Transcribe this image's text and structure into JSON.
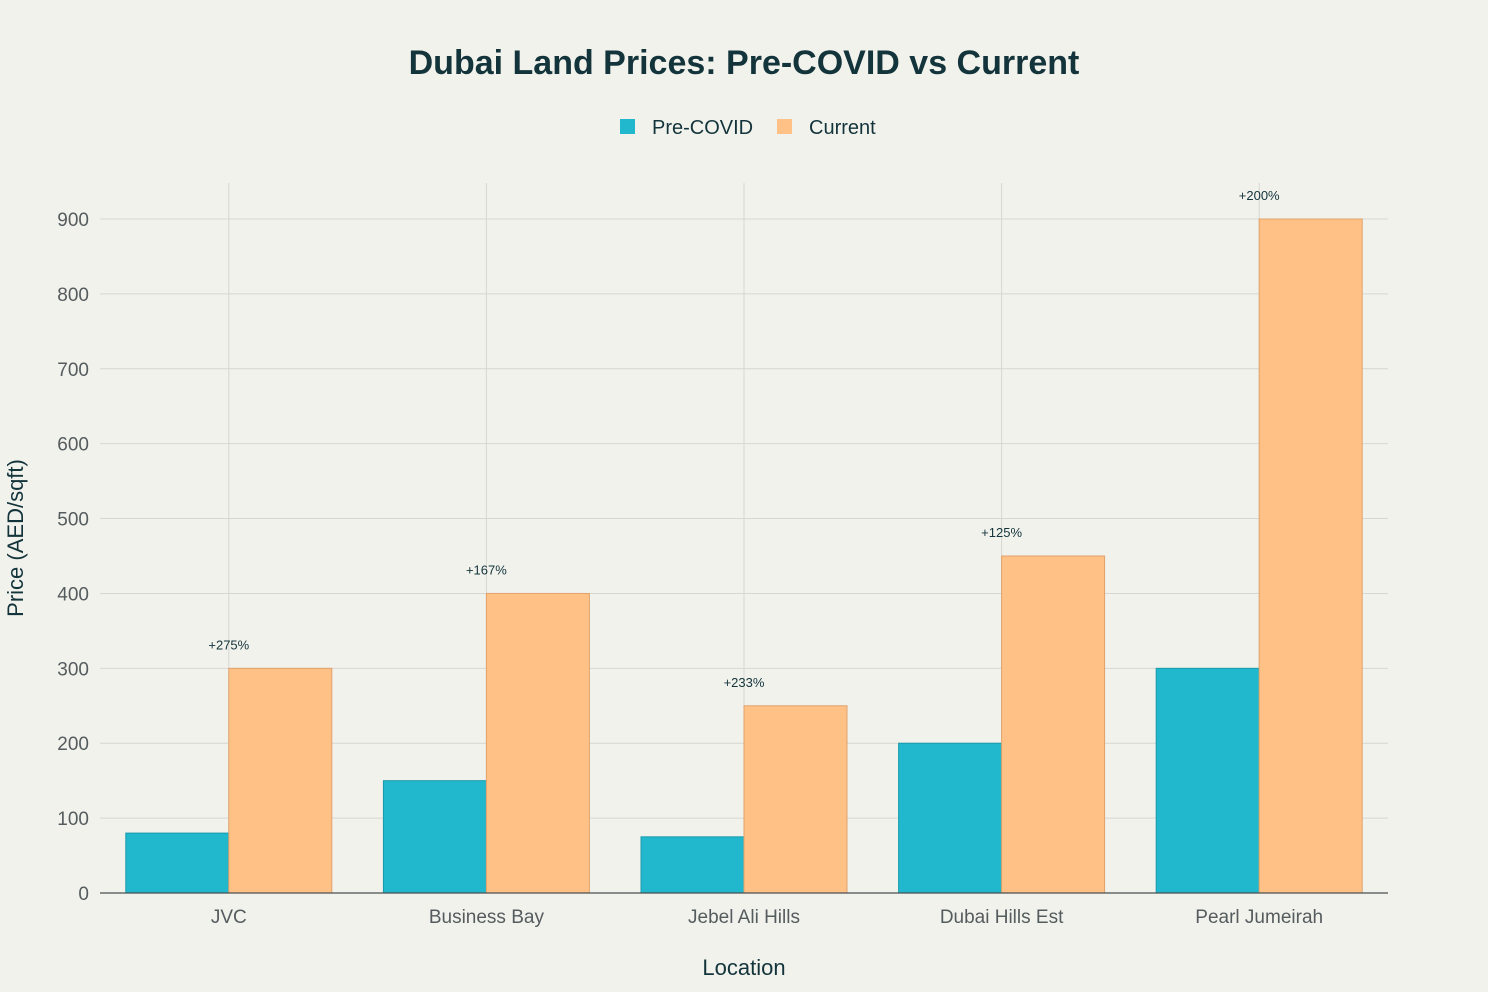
{
  "chart_data": {
    "type": "bar",
    "title": "Dubai Land Prices: Pre-COVID vs Current",
    "xlabel": "Location",
    "ylabel": "Price (AED/sqft)",
    "categories": [
      "JVC",
      "Business Bay",
      "Jebel Ali Hills",
      "Dubai Hills Est",
      "Pearl Jumeirah"
    ],
    "series": [
      {
        "name": "Pre-COVID",
        "color": "#21b8cd",
        "values": [
          80,
          150,
          75,
          200,
          300
        ]
      },
      {
        "name": "Current",
        "color": "#ffc185",
        "values": [
          300,
          400,
          250,
          450,
          900
        ]
      }
    ],
    "annotations": [
      "+275%",
      "+167%",
      "+233%",
      "+125%",
      "+200%"
    ],
    "ylim": [
      0,
      900
    ],
    "yticks": [
      0,
      100,
      200,
      300,
      400,
      500,
      600,
      700,
      800,
      900
    ],
    "grid": true,
    "legend_position": "top-center"
  }
}
